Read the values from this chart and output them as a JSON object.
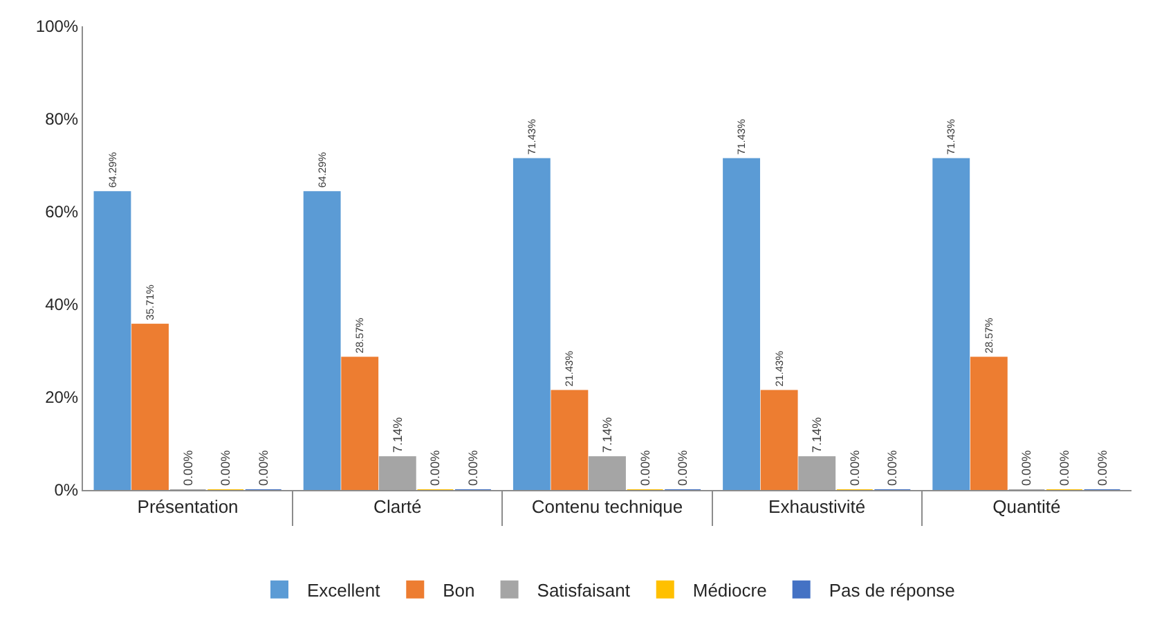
{
  "chart_data": {
    "type": "bar",
    "categories": [
      "Présentation",
      "Clarté",
      "Contenu technique",
      "Exhaustivité",
      "Quantité"
    ],
    "series": [
      {
        "name": "Excellent",
        "color": "#5b9bd5",
        "values": [
          64.29,
          64.29,
          71.43,
          71.43,
          71.43
        ],
        "value_labels": [
          "64.29%",
          "64.29%",
          "71.43%",
          "71.43%",
          "71.43%"
        ]
      },
      {
        "name": "Bon",
        "color": "#ed7d31",
        "values": [
          35.71,
          28.57,
          21.43,
          21.43,
          28.57
        ],
        "value_labels": [
          "35.71%",
          "28.57%",
          "21.43%",
          "21.43%",
          "28.57%"
        ]
      },
      {
        "name": "Satisfaisant",
        "color": "#a5a5a5",
        "values": [
          0,
          7.14,
          7.14,
          7.14,
          0
        ],
        "value_labels": [
          "0.00%",
          "7.14%",
          "7.14%",
          "7.14%",
          "0.00%"
        ]
      },
      {
        "name": "Médiocre",
        "color": "#ffc000",
        "values": [
          0,
          0,
          0,
          0,
          0
        ],
        "value_labels": [
          "0.00%",
          "0.00%",
          "0.00%",
          "0.00%",
          "0.00%"
        ]
      },
      {
        "name": "Pas de réponse",
        "color": "#4472c4",
        "values": [
          0,
          0,
          0,
          0,
          0
        ],
        "value_labels": [
          "0.00%",
          "0.00%",
          "0.00%",
          "0.00%",
          "0.00%"
        ]
      }
    ],
    "ylim": [
      0,
      100
    ],
    "yticks": [
      {
        "value": 0,
        "label": "0%"
      },
      {
        "value": 20,
        "label": "20%"
      },
      {
        "value": 40,
        "label": "40%"
      },
      {
        "value": 60,
        "label": "60%"
      },
      {
        "value": 80,
        "label": "80%"
      },
      {
        "value": 100,
        "label": "100%"
      }
    ],
    "grid": false,
    "legend": "bottom"
  }
}
